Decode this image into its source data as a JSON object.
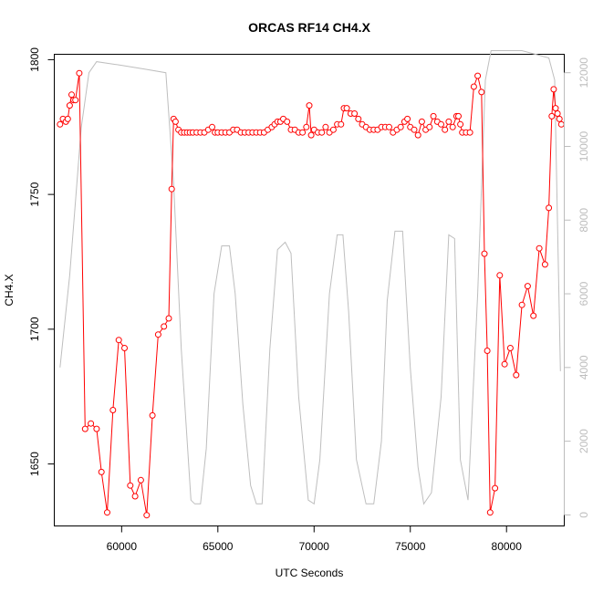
{
  "chart_data": {
    "type": "line",
    "title": "ORCAS RF14 CH4.X",
    "xlabel": "UTC Seconds",
    "ylabel": "CH4.X",
    "xlim": [
      56500,
      83000
    ],
    "ylim": [
      1627,
      1802
    ],
    "y2lim": [
      -300,
      12500
    ],
    "x_ticks": [
      60000,
      65000,
      70000,
      75000,
      80000
    ],
    "x_tick_labels": [
      "60000",
      "65000",
      "70000",
      "75000",
      "80000"
    ],
    "y_ticks": [
      1650,
      1700,
      1750,
      1800
    ],
    "y_tick_labels": [
      "1650",
      "1700",
      "1750",
      "1800"
    ],
    "y2_ticks": [
      0,
      2000,
      4000,
      6000,
      8000,
      10000,
      12000
    ],
    "y2_tick_labels": [
      "0",
      "2000",
      "4000",
      "6000",
      "8000",
      "10000",
      "12000"
    ],
    "grid": false,
    "legend": "none",
    "colors": {
      "series": "#ff0000",
      "altitude": "#bebebe",
      "axis": "#000000",
      "axis2": "#bdbdbd"
    },
    "series": [
      {
        "axis": "left",
        "style": "line-points",
        "x": [
          56800,
          56950,
          57100,
          57200,
          57300,
          57400,
          57500,
          57600,
          57800,
          58100,
          58400,
          58700,
          58950,
          59250,
          59550,
          59850,
          60150,
          60450,
          60700,
          61000,
          61300,
          61600,
          61900,
          62200,
          62450,
          62600,
          62700,
          62800,
          62950,
          63100,
          63250,
          63400,
          63550,
          63700,
          63900,
          64100,
          64300,
          64500,
          64700,
          64850,
          65000,
          65200,
          65400,
          65600,
          65800,
          66000,
          66200,
          66400,
          66600,
          66800,
          67000,
          67200,
          67400,
          67600,
          67800,
          67950,
          68100,
          68250,
          68400,
          68600,
          68800,
          69000,
          69200,
          69400,
          69600,
          69750,
          69850,
          70000,
          70200,
          70400,
          70600,
          70800,
          71000,
          71200,
          71400,
          71550,
          71700,
          71900,
          72100,
          72300,
          72500,
          72700,
          72900,
          73100,
          73300,
          73500,
          73700,
          73900,
          74100,
          74300,
          74500,
          74700,
          74850,
          75000,
          75200,
          75400,
          75600,
          75800,
          76000,
          76200,
          76400,
          76600,
          76800,
          77000,
          77200,
          77400,
          77500,
          77600,
          77700,
          77900,
          78100,
          78300,
          78500,
          78700,
          78850,
          79000,
          79150,
          79400,
          79650,
          79900,
          80200,
          80500,
          80800,
          81100,
          81400,
          81700,
          82000,
          82200,
          82350,
          82450,
          82550,
          82650,
          82750,
          82850
        ],
        "y": [
          1776,
          1778,
          1777,
          1778,
          1783,
          1787,
          1785,
          1785,
          1795,
          1663,
          1665,
          1663,
          1647,
          1632,
          1670,
          1696,
          1693,
          1642,
          1638,
          1644,
          1631,
          1668,
          1698,
          1701,
          1704,
          1752,
          1778,
          1777,
          1774,
          1773,
          1773,
          1773,
          1773,
          1773,
          1773,
          1773,
          1773,
          1774,
          1775,
          1773,
          1773,
          1773,
          1773,
          1773,
          1774,
          1774,
          1773,
          1773,
          1773,
          1773,
          1773,
          1773,
          1773,
          1774,
          1775,
          1776,
          1777,
          1777,
          1778,
          1777,
          1774,
          1774,
          1773,
          1773,
          1775,
          1783,
          1772,
          1774,
          1773,
          1773,
          1775,
          1773,
          1774,
          1776,
          1776,
          1782,
          1782,
          1780,
          1780,
          1778,
          1776,
          1775,
          1774,
          1774,
          1774,
          1775,
          1775,
          1775,
          1773,
          1774,
          1775,
          1777,
          1778,
          1775,
          1774,
          1772,
          1777,
          1774,
          1775,
          1779,
          1777,
          1776,
          1774,
          1777,
          1775,
          1779,
          1779,
          1776,
          1773,
          1773,
          1773,
          1790,
          1794,
          1788,
          1728,
          1692,
          1632,
          1641,
          1720,
          1687,
          1693,
          1683,
          1709,
          1716,
          1705,
          1730,
          1724,
          1745,
          1779,
          1789,
          1782,
          1780,
          1778,
          1776
        ]
      },
      {
        "axis": "right",
        "style": "line",
        "x": [
          56800,
          57300,
          57900,
          58300,
          58700,
          60000,
          61200,
          62300,
          62700,
          63100,
          63600,
          63800,
          64100,
          64400,
          64800,
          65200,
          65600,
          65900,
          66300,
          66700,
          67000,
          67300,
          67700,
          68100,
          68500,
          68800,
          69200,
          69700,
          70000,
          70300,
          70800,
          71200,
          71500,
          71800,
          72200,
          72700,
          73100,
          73500,
          73800,
          74200,
          74600,
          75000,
          75400,
          75700,
          76100,
          76600,
          77000,
          77300,
          77600,
          78000,
          78500,
          78900,
          79200,
          79500,
          80000,
          80800,
          81500,
          82200,
          82500,
          82800
        ],
        "y": [
          4000,
          6500,
          10500,
          12000,
          12300,
          12200,
          12100,
          12000,
          9000,
          4500,
          400,
          300,
          300,
          1800,
          6000,
          7300,
          7300,
          6000,
          3000,
          800,
          300,
          300,
          4500,
          7200,
          7400,
          7100,
          3200,
          400,
          300,
          1500,
          6000,
          7600,
          7600,
          5500,
          1500,
          300,
          300,
          2000,
          5800,
          7700,
          7700,
          4000,
          1300,
          300,
          600,
          3200,
          7600,
          7500,
          1500,
          400,
          6000,
          11800,
          12600,
          12600,
          12600,
          12600,
          12500,
          12400,
          11800,
          3900
        ]
      }
    ]
  }
}
